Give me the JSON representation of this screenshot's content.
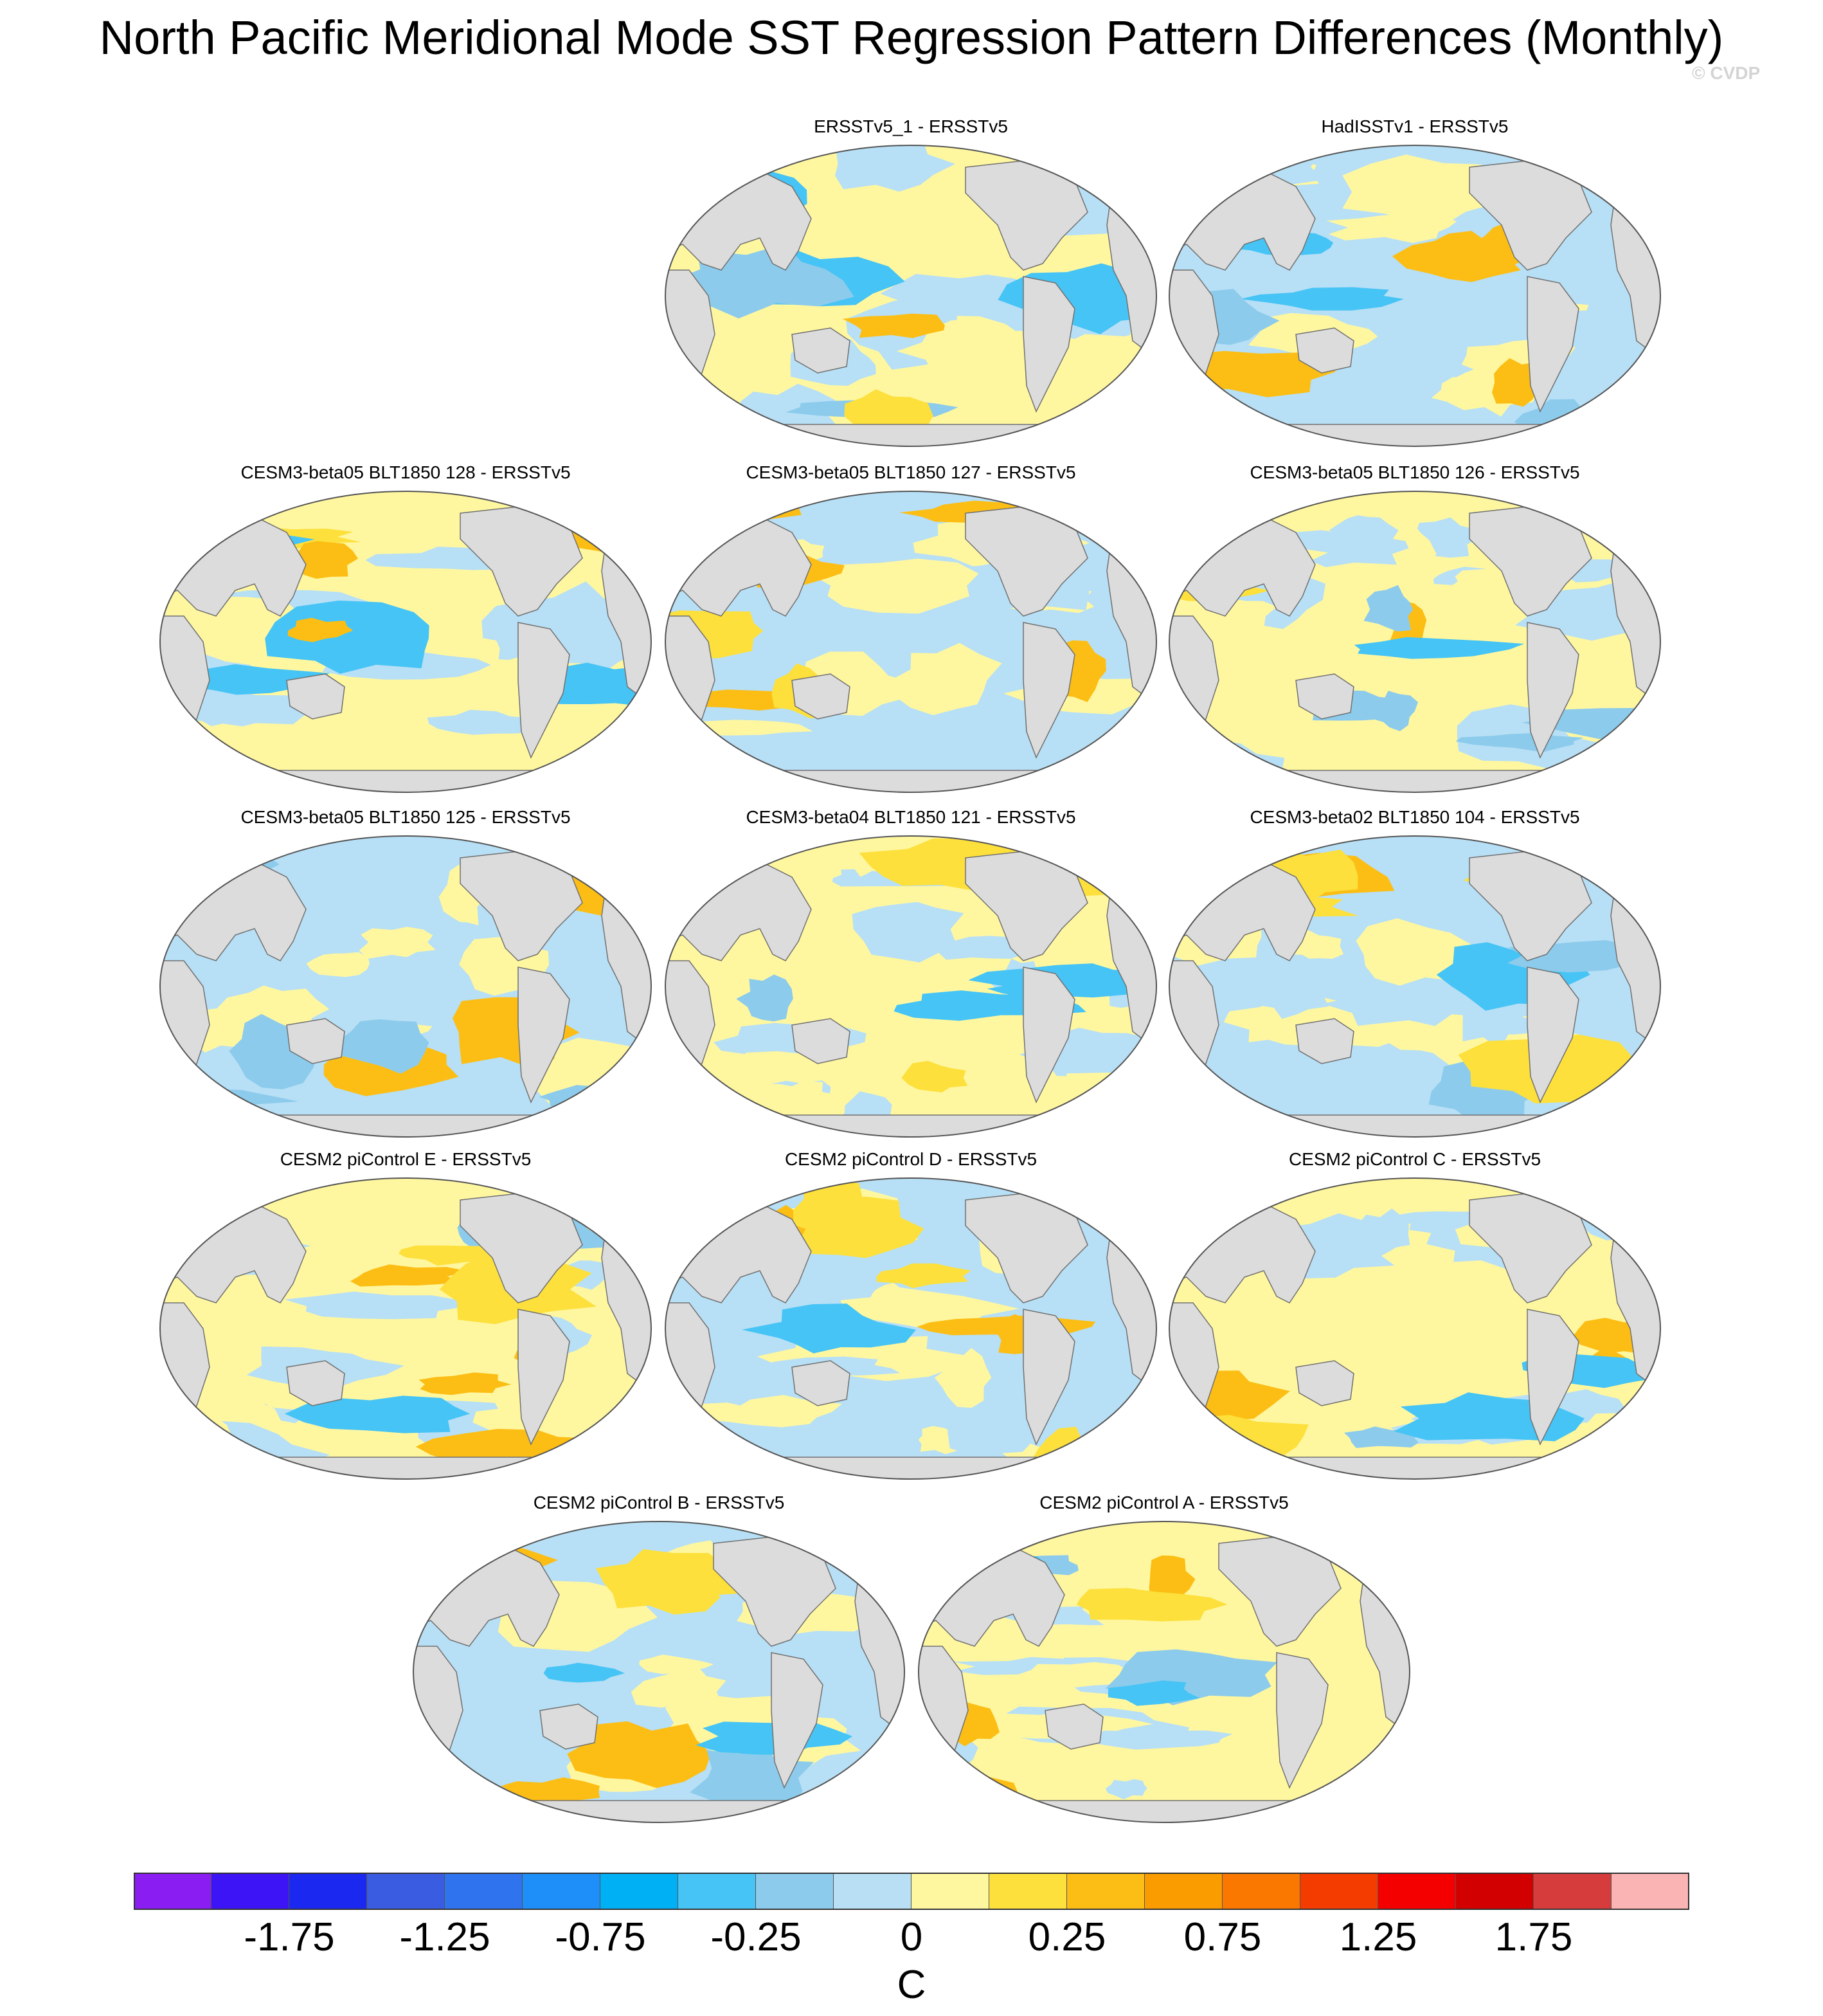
{
  "title": "North Pacific Meridional Mode SST Regression Pattern Differences (Monthly)",
  "credit": "© CVDP",
  "panels": [
    {
      "label": "ERSSTv5_1 - ERSSTv5"
    },
    {
      "label": "HadISSTv1 - ERSSTv5"
    },
    {
      "label": "CESM3-beta05 BLT1850 128 - ERSSTv5"
    },
    {
      "label": "CESM3-beta05 BLT1850 127 - ERSSTv5"
    },
    {
      "label": "CESM3-beta05 BLT1850 126 - ERSSTv5"
    },
    {
      "label": "CESM3-beta05 BLT1850 125 - ERSSTv5"
    },
    {
      "label": "CESM3-beta04 BLT1850 121 - ERSSTv5"
    },
    {
      "label": "CESM3-beta02 BLT1850 104 - ERSSTv5"
    },
    {
      "label": "CESM2 piControl E - ERSSTv5"
    },
    {
      "label": "CESM2 piControl D - ERSSTv5"
    },
    {
      "label": "CESM2 piControl C - ERSSTv5"
    },
    {
      "label": "CESM2 piControl B - ERSSTv5"
    },
    {
      "label": "CESM2 piControl A - ERSSTv5"
    }
  ],
  "colors": {
    "land": "#dcdcdc",
    "ocean_neutral_neg": "#b7dff5",
    "ocean_neutral_pos": "#fff7a0"
  },
  "colorbar": {
    "colors": [
      "#8a1ef2",
      "#3c14f5",
      "#1a28f0",
      "#3a5ce0",
      "#2f73ee",
      "#1e8ff8",
      "#00b0f5",
      "#46c4f5",
      "#8ccbec",
      "#b8dff4",
      "#fff7a0",
      "#fde03c",
      "#fcbe14",
      "#fa9c00",
      "#fa7800",
      "#f53c00",
      "#f50000",
      "#d20000",
      "#d73c3c",
      "#fab4b4"
    ],
    "tick_labels": [
      "-1.75",
      "-1.25",
      "-0.75",
      "-0.25",
      "0",
      "0.25",
      "0.75",
      "1.25",
      "1.75"
    ],
    "unit": "C"
  }
}
